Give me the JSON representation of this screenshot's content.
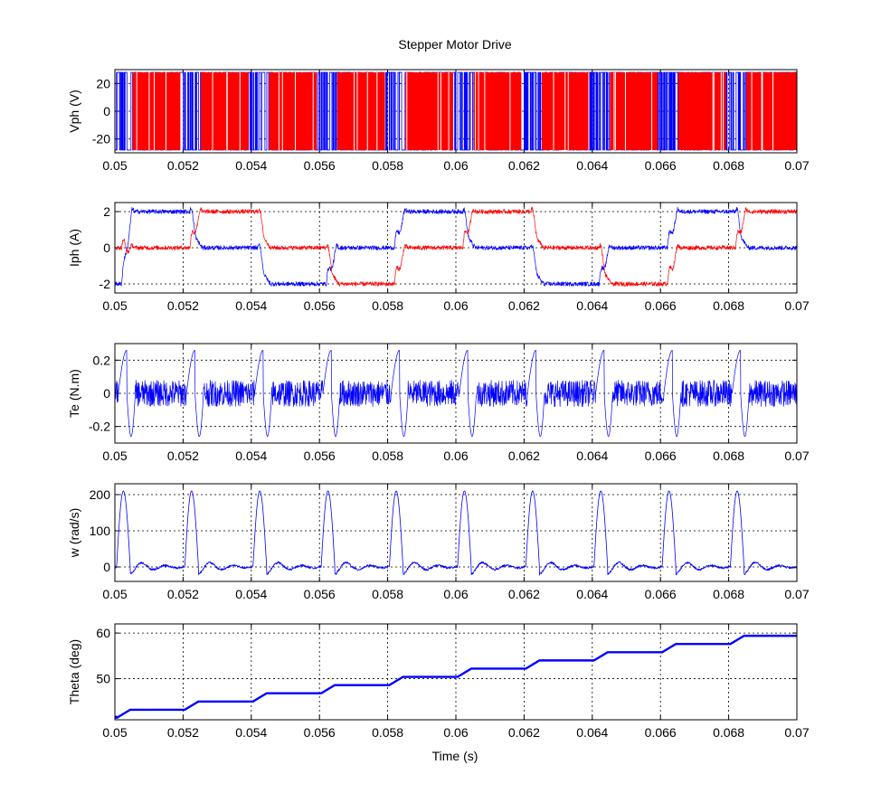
{
  "chart_data": {
    "type": "line",
    "title": "Stepper Motor Drive",
    "xlabel": "Time (s)",
    "xlim": [
      0.05,
      0.07
    ],
    "x_tick_labels": [
      "0.05",
      "0.052",
      "0.054",
      "0.056",
      "0.058",
      "0.06",
      "0.062",
      "0.064",
      "0.066",
      "0.068",
      "0.07"
    ],
    "colors": {
      "phase_a": "#ff0000",
      "phase_b": "#0000ff"
    },
    "grid": true,
    "subplots": [
      {
        "key": "vph",
        "ylabel": "Vph (V)",
        "ylim": [
          -30,
          30
        ],
        "y_ticks": [
          -20,
          0,
          20
        ],
        "y_tick_labels": [
          "-20",
          "0",
          "20"
        ],
        "series": [
          {
            "color": "#ff0000",
            "kind": "pwm",
            "amplitude": 28,
            "pattern": "chopping between +28 and -28 V during each phase-A conduction interval"
          },
          {
            "color": "#0000ff",
            "kind": "pwm",
            "amplitude": 28,
            "pattern": "chopping between +28 and -28 V during each phase-B conduction interval"
          }
        ]
      },
      {
        "key": "iph",
        "ylabel": "Iph (A)",
        "ylim": [
          -2.5,
          2.5
        ],
        "y_ticks": [
          -2,
          0,
          2
        ],
        "y_tick_labels": [
          "-2",
          "0",
          "2"
        ],
        "series": [
          {
            "color": "#0000ff",
            "step_levels": [
              2,
              0,
              -2,
              0,
              2,
              0,
              -2,
              0,
              2,
              0
            ]
          },
          {
            "color": "#ff0000",
            "step_levels": [
              0,
              2,
              0,
              -2,
              0,
              2,
              0,
              -2,
              0,
              2
            ]
          }
        ]
      },
      {
        "key": "te",
        "ylabel": "Te (N.m)",
        "ylim": [
          -0.3,
          0.3
        ],
        "y_ticks": [
          -0.2,
          0,
          0.2
        ],
        "y_tick_labels": [
          "-0.2",
          "0",
          "0.2"
        ],
        "series": [
          {
            "color": "#0000ff",
            "step_spike_peak": 0.26,
            "step_spike_trough": -0.26,
            "ripple": 0.08
          }
        ]
      },
      {
        "key": "w",
        "ylabel": "w (rad/s)",
        "ylim": [
          -40,
          230
        ],
        "y_ticks": [
          0,
          100,
          200
        ],
        "y_tick_labels": [
          "0",
          "100",
          "200"
        ],
        "series": [
          {
            "color": "#0000ff",
            "step_peak": 210,
            "dip": -20,
            "ripple": 15
          }
        ]
      },
      {
        "key": "theta",
        "ylabel": "Theta (deg)",
        "ylim": [
          41,
          62
        ],
        "y_ticks": [
          50,
          60
        ],
        "y_tick_labels": [
          "50",
          "60"
        ],
        "series": [
          {
            "color": "#0000ff",
            "start_value": 41.4,
            "step_size": 1.8,
            "levels": [
              43.2,
              45.0,
              46.8,
              48.6,
              50.4,
              52.2,
              54.0,
              55.8,
              57.6,
              59.4
            ]
          }
        ]
      }
    ],
    "step_times": [
      0.0502,
      0.0522,
      0.0542,
      0.0562,
      0.0582,
      0.0602,
      0.0622,
      0.0642,
      0.0662,
      0.0682
    ]
  }
}
